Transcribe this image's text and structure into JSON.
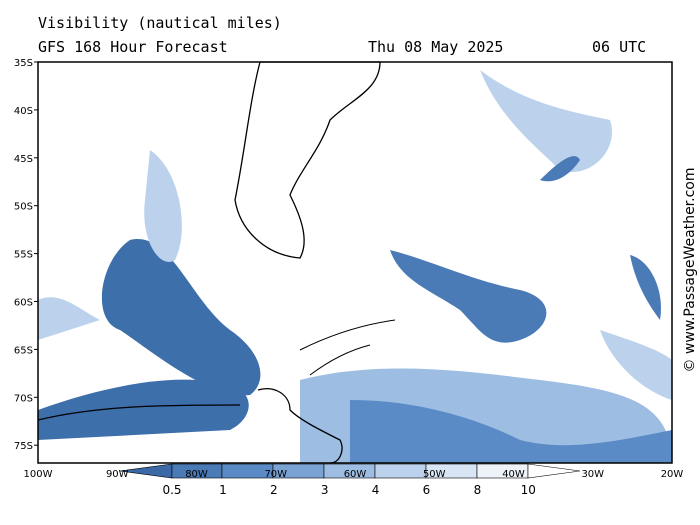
{
  "header": {
    "title": "Visibility (nautical miles)",
    "subtitle": "GFS 168 Hour Forecast",
    "date": "Thu 08 May 2025",
    "time": "06 UTC"
  },
  "map": {
    "lat_labels": [
      "35S",
      "40S",
      "45S",
      "50S",
      "55S",
      "60S",
      "65S",
      "70S",
      "75S"
    ],
    "lon_labels": [
      "100W",
      "90W",
      "80W",
      "70W",
      "60W",
      "50W",
      "40W",
      "30W",
      "20W"
    ]
  },
  "legend": {
    "labels": [
      "0.5",
      "1",
      "2",
      "3",
      "4",
      "6",
      "8",
      "10"
    ]
  },
  "credit": "© www.PassageWeather.com"
}
